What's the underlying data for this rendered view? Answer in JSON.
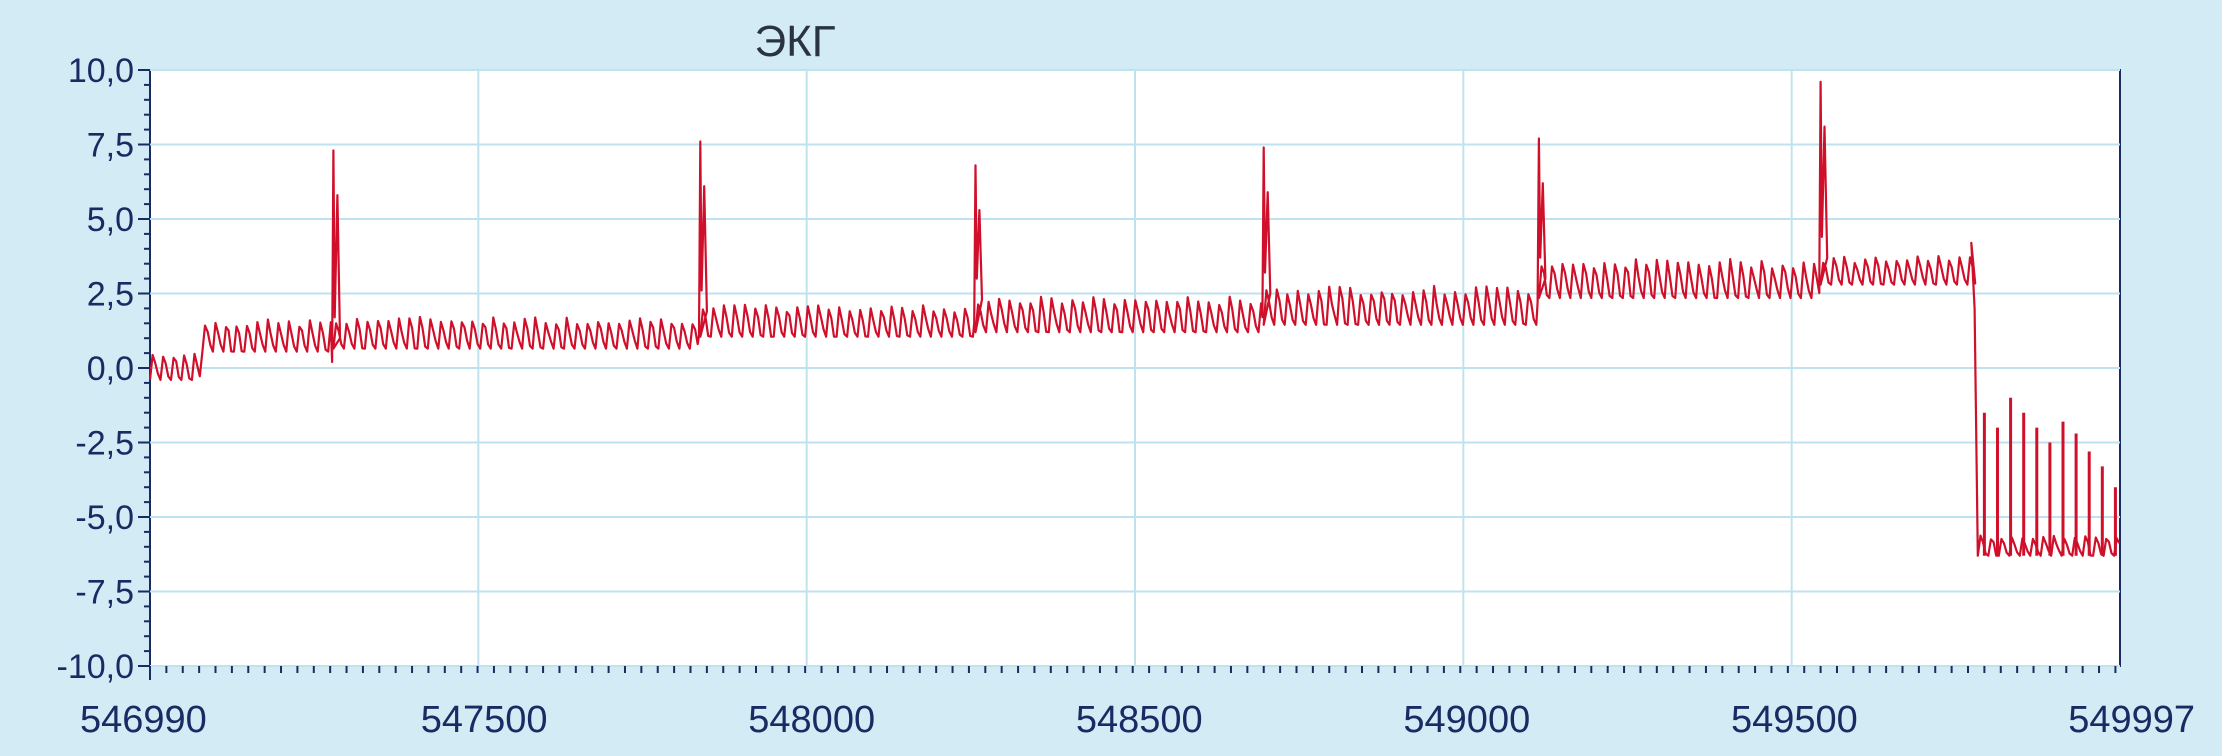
{
  "colors": {
    "background": "#cfe8f2",
    "plot_background": "#ffffff",
    "grid": "#bfe3ee",
    "axis": "#1a2a63",
    "signal": "#d0102a"
  },
  "chart_data": {
    "type": "line",
    "title": "ЭКГ",
    "xlabel": "",
    "ylabel": "",
    "xlim": [
      546990,
      549997
    ],
    "ylim": [
      -10,
      10
    ],
    "grid": true,
    "y_ticks": [
      "10,0",
      "7,5",
      "5,0",
      "2,5",
      "0,0",
      "-2,5",
      "-5,0",
      "-7,5",
      "-10,0"
    ],
    "y_tick_values": [
      10,
      7.5,
      5,
      2.5,
      0,
      -2.5,
      -5,
      -7.5,
      -10
    ],
    "x_ticks": [
      "546990",
      "547500",
      "548000",
      "548500",
      "549000",
      "549500",
      "549997"
    ],
    "x_tick_values": [
      546990,
      547500,
      548000,
      548500,
      549000,
      549500,
      549997
    ],
    "series": [
      {
        "color": "#d0102a",
        "segments": [
          {
            "x_start": 546990,
            "x_end": 547070,
            "baseline": 0.0,
            "ripple": 0.8
          },
          {
            "x_start": 547070,
            "x_end": 547270,
            "baseline": 1.0,
            "ripple": 0.9
          },
          {
            "x_start": 547270,
            "x_end": 547830,
            "baseline": 1.1,
            "ripple": 0.9
          },
          {
            "x_start": 547830,
            "x_end": 548250,
            "baseline": 1.5,
            "ripple": 0.9
          },
          {
            "x_start": 548250,
            "x_end": 548690,
            "baseline": 1.7,
            "ripple": 1.0
          },
          {
            "x_start": 548690,
            "x_end": 549110,
            "baseline": 2.0,
            "ripple": 1.1
          },
          {
            "x_start": 549110,
            "x_end": 549540,
            "baseline": 2.9,
            "ripple": 1.1
          },
          {
            "x_start": 549540,
            "x_end": 549780,
            "baseline": 3.2,
            "ripple": 0.8
          },
          {
            "x_start": 549780,
            "x_end": 549997,
            "baseline": -6.0,
            "ripple": 0.6
          }
        ],
        "peaks": [
          {
            "x": 547270,
            "y": 7.3,
            "base": 0.2
          },
          {
            "x": 547830,
            "y": 7.6,
            "base": 1.1
          },
          {
            "x": 548250,
            "y": 6.8,
            "base": 1.5
          },
          {
            "x": 548690,
            "y": 7.4,
            "base": 1.7
          },
          {
            "x": 549110,
            "y": 7.7,
            "base": 2.2
          },
          {
            "x": 549540,
            "y": 9.6,
            "base": 2.9
          }
        ],
        "tail_spikes": [
          {
            "x": 549790,
            "y": -1.5
          },
          {
            "x": 549810,
            "y": -2.0
          },
          {
            "x": 549830,
            "y": -1.0
          },
          {
            "x": 549850,
            "y": -1.5
          },
          {
            "x": 549870,
            "y": -2.0
          },
          {
            "x": 549890,
            "y": -2.5
          },
          {
            "x": 549910,
            "y": -1.8
          },
          {
            "x": 549930,
            "y": -2.2
          },
          {
            "x": 549950,
            "y": -2.8
          },
          {
            "x": 549970,
            "y": -3.3
          },
          {
            "x": 549990,
            "y": -4.0
          }
        ]
      }
    ]
  }
}
